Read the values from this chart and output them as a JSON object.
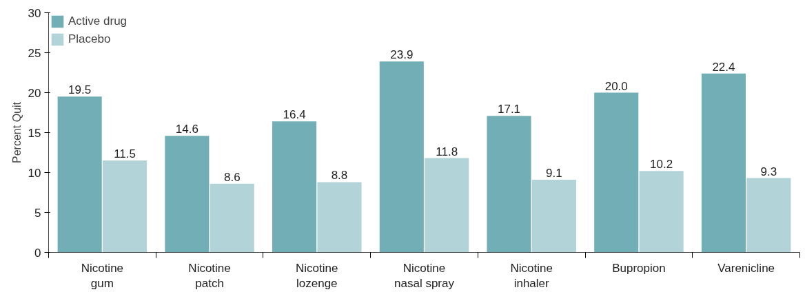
{
  "chart_data": {
    "type": "bar",
    "ylabel": "Percent Quit",
    "categories": [
      "Nicotine gum",
      "Nicotine patch",
      "Nicotine lozenge",
      "Nicotine nasal spray",
      "Nicotine inhaler",
      "Bupropion",
      "Varenicline"
    ],
    "series": [
      {
        "name": "Active drug",
        "color": "#72aeb5",
        "values": [
          19.5,
          14.6,
          16.4,
          23.9,
          17.1,
          20.0,
          22.4
        ],
        "value_labels": [
          "19.5",
          "14.6",
          "16.4",
          "23.9",
          "17.1",
          "20.0",
          "22.4"
        ]
      },
      {
        "name": "Placebo",
        "color": "#b2d3d7",
        "values": [
          11.5,
          8.6,
          8.8,
          11.8,
          9.1,
          10.2,
          9.3
        ],
        "value_labels": [
          "11.5",
          "8.6",
          "8.8",
          "11.8",
          "9.1",
          "10.2",
          "9.3"
        ]
      }
    ],
    "ylim": [
      0,
      30
    ],
    "yticks": [
      0,
      5,
      10,
      15,
      20,
      25,
      30
    ],
    "grid": false,
    "legend": "top left"
  }
}
